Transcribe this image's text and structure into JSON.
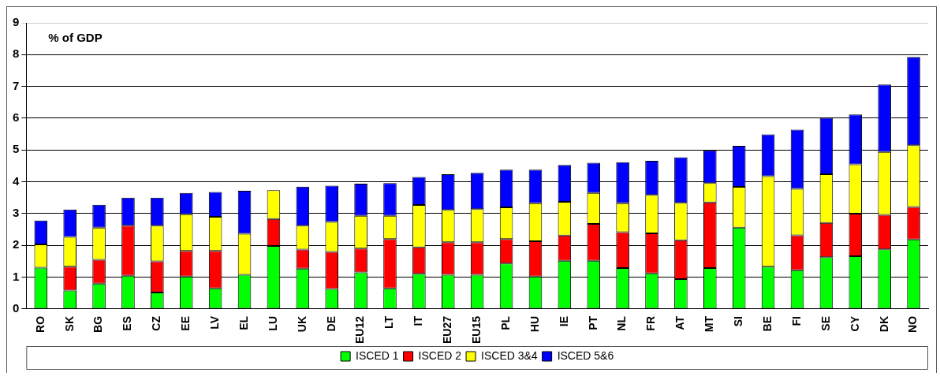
{
  "chart_data": {
    "type": "bar",
    "stacked": true,
    "annotations": [
      "% of GDP"
    ],
    "categories": [
      "RO",
      "SK",
      "BG",
      "ES",
      "CZ",
      "EE",
      "LV",
      "EL",
      "LU",
      "UK",
      "DE",
      "EU12",
      "LT",
      "IT",
      "EU27",
      "EU15",
      "PL",
      "HU",
      "IE",
      "PT",
      "NL",
      "FR",
      "AT",
      "MT",
      "SI",
      "BE",
      "FI",
      "SE",
      "CY",
      "DK",
      "NO"
    ],
    "series": [
      {
        "name": "ISCED 1",
        "color": "#00ff00",
        "values": [
          1.3,
          0.58,
          0.8,
          1.05,
          0.52,
          1.02,
          0.65,
          1.08,
          1.98,
          1.27,
          0.63,
          1.15,
          0.65,
          1.11,
          1.08,
          1.08,
          1.43,
          1.02,
          1.52,
          1.52,
          1.29,
          1.12,
          0.94,
          1.29,
          2.56,
          1.33,
          1.22,
          1.63,
          1.66,
          1.88,
          2.19
        ]
      },
      {
        "name": "ISCED 2",
        "color": "#ff0000",
        "values": [
          0,
          0.75,
          0.75,
          1.57,
          0.98,
          0.81,
          1.18,
          0,
          0.85,
          0.6,
          1.17,
          0.75,
          1.55,
          0.83,
          1.02,
          1.02,
          0.77,
          1.11,
          0.79,
          1.16,
          1.13,
          1.26,
          1.22,
          2.06,
          0,
          0,
          1.1,
          1.08,
          1.34,
          1.08,
          1.02
        ]
      },
      {
        "name": "ISCED 3&4",
        "color": "#ffff00",
        "values": [
          0.73,
          0.94,
          1.01,
          0,
          1.12,
          1.15,
          1.07,
          1.29,
          0.91,
          0.75,
          0.94,
          1.03,
          0.73,
          1.33,
          1.02,
          1.04,
          1.0,
          1.2,
          1.06,
          0.97,
          0.91,
          1.21,
          1.18,
          0.61,
          1.28,
          2.85,
          1.46,
          1.53,
          1.55,
          1.98,
          1.94
        ]
      },
      {
        "name": "ISCED 5&6",
        "color": "#0000ff",
        "values": [
          0.75,
          0.86,
          0.72,
          0.88,
          0.88,
          0.67,
          0.78,
          1.35,
          0,
          1.23,
          1.14,
          1.01,
          1.03,
          0.88,
          1.12,
          1.14,
          1.18,
          1.05,
          1.16,
          0.95,
          1.29,
          1.07,
          1.43,
          1.03,
          1.29,
          1.31,
          1.86,
          1.77,
          1.57,
          2.12,
          2.78
        ]
      }
    ],
    "ylim": [
      0,
      9
    ],
    "yticks": [
      0,
      1,
      2,
      3,
      4,
      5,
      6,
      7,
      8,
      9
    ],
    "grid": "y",
    "legend": "bottom"
  }
}
